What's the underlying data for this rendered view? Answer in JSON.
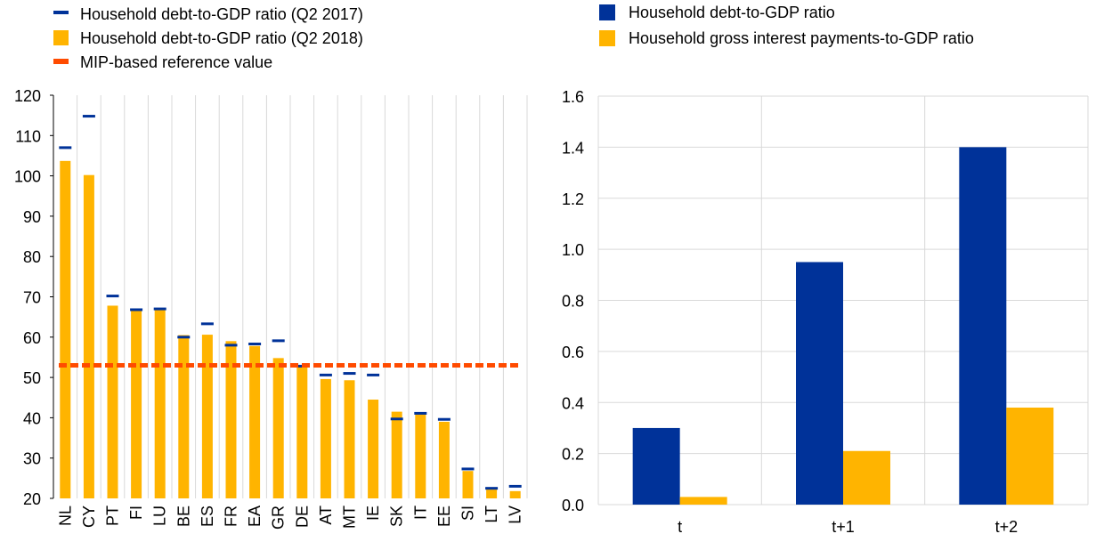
{
  "colors": {
    "q2_2017_marker": "#003299",
    "q2_2018_bar": "#FFB400",
    "reference_line": "#FF4B00",
    "debt_bar": "#003299",
    "interest_bar": "#FFB400",
    "grid": "#D9D9D9"
  },
  "chart_data": [
    {
      "type": "bar",
      "legend": {
        "q2_2017": "Household debt-to-GDP ratio (Q2 2017)",
        "q2_2018": "Household debt-to-GDP ratio (Q2 2018)",
        "reference": "MIP-based reference value"
      },
      "categories": [
        "NL",
        "CY",
        "PT",
        "FI",
        "LU",
        "BE",
        "ES",
        "FR",
        "EA",
        "GR",
        "DE",
        "AT",
        "MT",
        "IE",
        "SK",
        "IT",
        "EE",
        "SI",
        "LT",
        "LV"
      ],
      "series": [
        {
          "name": "Household debt-to-GDP ratio (Q2 2018)",
          "kind": "bar",
          "values": [
            103.7,
            100.2,
            67.8,
            66.5,
            66.7,
            60.5,
            60.6,
            59.0,
            57.8,
            54.8,
            53.0,
            49.6,
            49.3,
            44.5,
            41.5,
            40.9,
            39.0,
            26.8,
            22.2,
            21.8
          ]
        },
        {
          "name": "Household debt-to-GDP ratio (Q2 2017)",
          "kind": "marker",
          "values": [
            107.0,
            114.8,
            70.2,
            66.8,
            67.0,
            60.0,
            63.3,
            58.0,
            58.3,
            59.1,
            52.8,
            50.6,
            51.0,
            50.6,
            39.7,
            41.1,
            39.6,
            27.3,
            22.5,
            23.0
          ]
        },
        {
          "name": "MIP-based reference value",
          "kind": "line",
          "value": 53
        }
      ],
      "ylim": [
        20,
        120
      ],
      "yticks": [
        20,
        30,
        40,
        50,
        60,
        70,
        80,
        90,
        100,
        110,
        120
      ],
      "grid": "vertical",
      "legend_position": "top-left"
    },
    {
      "type": "bar",
      "legend": {
        "debt": "Household debt-to-GDP ratio",
        "interest": "Household gross interest payments-to-GDP ratio"
      },
      "categories": [
        "t",
        "t+1",
        "t+2"
      ],
      "series": [
        {
          "name": "Household debt-to-GDP ratio",
          "values": [
            0.3,
            0.95,
            1.4
          ]
        },
        {
          "name": "Household gross interest payments-to-GDP ratio",
          "values": [
            0.03,
            0.21,
            0.38
          ]
        }
      ],
      "ylim": [
        0.0,
        1.6
      ],
      "yticks": [
        "0.0",
        "0.2",
        "0.4",
        "0.6",
        "0.8",
        "1.0",
        "1.2",
        "1.4",
        "1.6"
      ],
      "grid": "both",
      "legend_position": "top"
    }
  ]
}
